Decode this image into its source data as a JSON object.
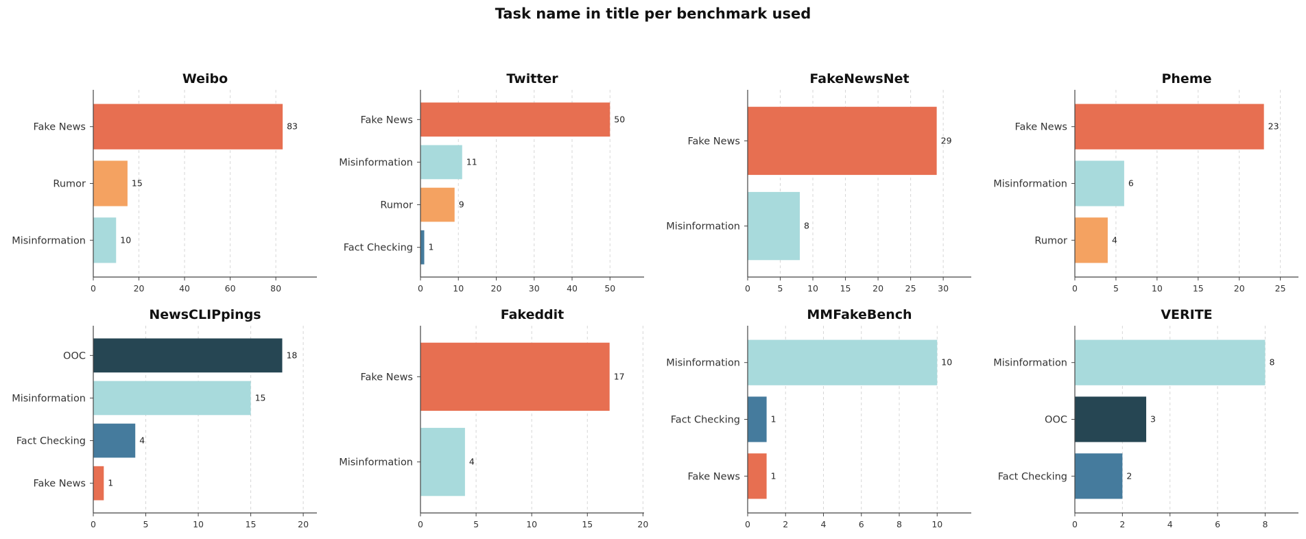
{
  "figure": {
    "suptitle": "Task name in title per benchmark used"
  },
  "colors": {
    "Fake News": "#e76f51",
    "Rumor": "#f4a261",
    "Misinformation": "#a8dadc",
    "Fact Checking": "#457b9d",
    "OOC": "#264653"
  },
  "chart_data": [
    {
      "type": "bar",
      "orientation": "horizontal",
      "title": "Weibo",
      "categories": [
        "Fake News",
        "Rumor",
        "Misinformation"
      ],
      "values": [
        83,
        15,
        10
      ],
      "xlim": [
        0,
        98
      ],
      "xticks": [
        0,
        20,
        40,
        60,
        80
      ],
      "grid": "x-dashed"
    },
    {
      "type": "bar",
      "orientation": "horizontal",
      "title": "Twitter",
      "categories": [
        "Fake News",
        "Misinformation",
        "Rumor",
        "Fact Checking"
      ],
      "values": [
        50,
        11,
        9,
        1
      ],
      "xlim": [
        0,
        59
      ],
      "xticks": [
        0,
        10,
        20,
        30,
        40,
        50
      ],
      "grid": "x-dashed"
    },
    {
      "type": "bar",
      "orientation": "horizontal",
      "title": "FakeNewsNet",
      "categories": [
        "Fake News",
        "Misinformation"
      ],
      "values": [
        29,
        8
      ],
      "xlim": [
        0,
        34.3
      ],
      "xticks": [
        0,
        5,
        10,
        15,
        20,
        25,
        30
      ],
      "grid": "x-dashed"
    },
    {
      "type": "bar",
      "orientation": "horizontal",
      "title": "Pheme",
      "categories": [
        "Fake News",
        "Misinformation",
        "Rumor"
      ],
      "values": [
        23,
        6,
        4
      ],
      "xlim": [
        0,
        27.2
      ],
      "xticks": [
        0,
        5,
        10,
        15,
        20,
        25
      ],
      "grid": "x-dashed"
    },
    {
      "type": "bar",
      "orientation": "horizontal",
      "title": "NewsCLIPpings",
      "categories": [
        "OOC",
        "Misinformation",
        "Fact Checking",
        "Fake News"
      ],
      "values": [
        18,
        15,
        4,
        1
      ],
      "xlim": [
        0,
        21.3
      ],
      "xticks": [
        0,
        5,
        10,
        15,
        20
      ],
      "grid": "x-dashed"
    },
    {
      "type": "bar",
      "orientation": "horizontal",
      "title": "Fakeddit",
      "categories": [
        "Fake News",
        "Misinformation"
      ],
      "values": [
        17,
        4
      ],
      "xlim": [
        0,
        20.1
      ],
      "xticks": [
        0,
        5,
        10,
        15,
        20
      ],
      "grid": "x-dashed"
    },
    {
      "type": "bar",
      "orientation": "horizontal",
      "title": "MMFakeBench",
      "categories": [
        "Misinformation",
        "Fact Checking",
        "Fake News"
      ],
      "values": [
        10,
        1,
        1
      ],
      "xlim": [
        0,
        11.8
      ],
      "xticks": [
        0,
        2,
        4,
        6,
        8,
        10
      ],
      "grid": "x-dashed"
    },
    {
      "type": "bar",
      "orientation": "horizontal",
      "title": "VERITE",
      "categories": [
        "Misinformation",
        "OOC",
        "Fact Checking"
      ],
      "values": [
        8,
        3,
        2
      ],
      "xlim": [
        0,
        9.4
      ],
      "xticks": [
        0,
        2,
        4,
        6,
        8
      ],
      "grid": "x-dashed"
    }
  ]
}
